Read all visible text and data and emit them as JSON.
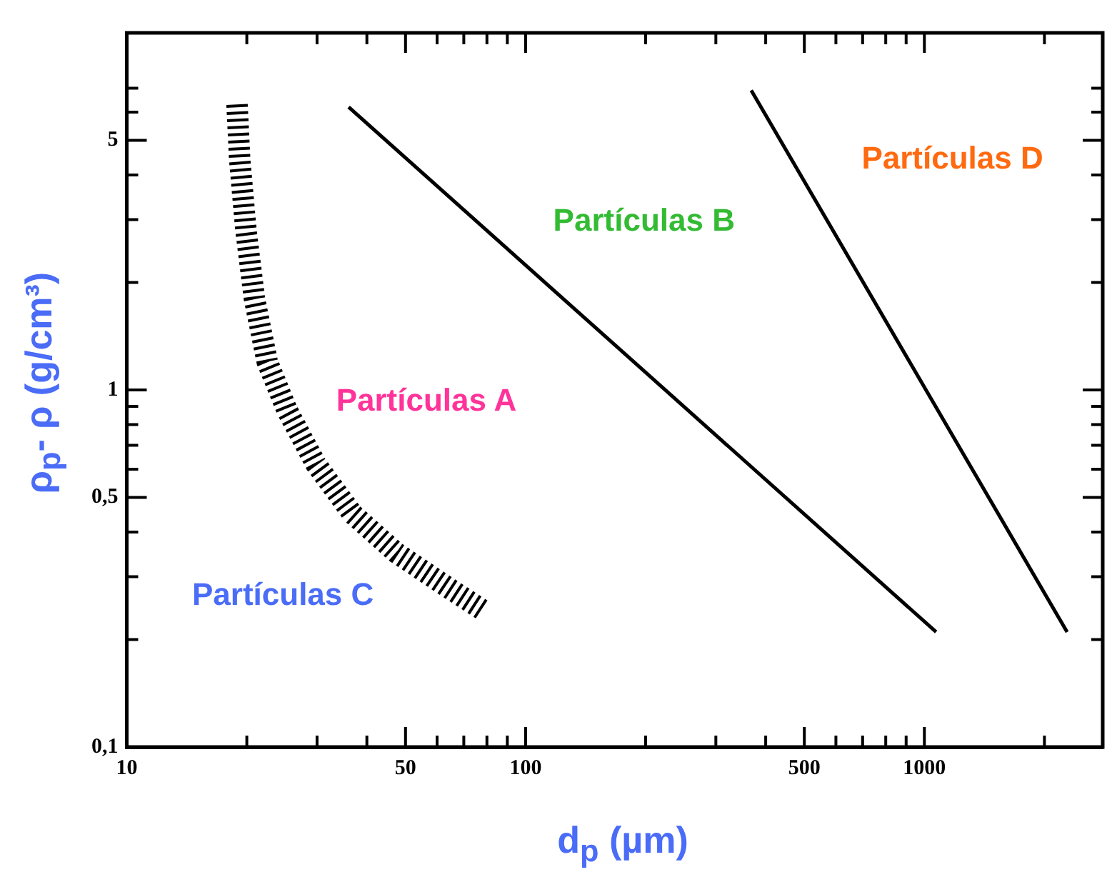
{
  "chart_data": {
    "type": "line",
    "xlabel": "d$_{p}$ (µm)",
    "ylabel": "ρ$_{p}$- ρ (g/cm³)",
    "log": "xy",
    "grid": false,
    "legend": false,
    "marker": "none",
    "xlim": [
      10,
      2800
    ],
    "ylim": [
      0.1,
      10
    ],
    "xticks": [
      10,
      {
        "value": 20,
        "label": null
      },
      {
        "value": 30,
        "label": null
      },
      {
        "value": 40,
        "label": null
      },
      50,
      {
        "value": 60,
        "label": null
      },
      {
        "value": 70,
        "label": null
      },
      {
        "value": 80,
        "label": null
      },
      {
        "value": 90,
        "label": null
      },
      100,
      {
        "value": 200,
        "label": null
      },
      {
        "value": 300,
        "label": null
      },
      {
        "value": 400,
        "label": null
      },
      500,
      {
        "value": 600,
        "label": null
      },
      {
        "value": 700,
        "label": null
      },
      {
        "value": 800,
        "label": null
      },
      {
        "value": 900,
        "label": null
      },
      1000,
      {
        "value": 2000,
        "label": null
      }
    ],
    "yticks": [
      {
        "value": 0.1,
        "label": "0,1"
      },
      {
        "value": 0.2,
        "label": null
      },
      {
        "value": 0.3,
        "label": null
      },
      {
        "value": 0.4,
        "label": null
      },
      {
        "value": 0.5,
        "label": "0,5"
      },
      {
        "value": 0.6,
        "label": null
      },
      {
        "value": 0.7,
        "label": null
      },
      {
        "value": 0.8,
        "label": null
      },
      {
        "value": 0.9,
        "label": null
      },
      1,
      {
        "value": 2,
        "label": null
      },
      {
        "value": 3,
        "label": null
      },
      {
        "value": 4,
        "label": null
      },
      5,
      {
        "value": 6,
        "label": null
      },
      {
        "value": 7,
        "label": null
      }
    ],
    "series": [
      {
        "color": "#000000",
        "line_style": "dashed",
        "x": [
          18.9,
          19.2,
          19.9,
          20.9,
          22.5,
          25.2,
          29.8,
          36.8,
          47.4,
          63.8,
          78.9
        ],
        "values": [
          6.3,
          4.4,
          2.8,
          1.8,
          1.2,
          0.88,
          0.62,
          0.45,
          0.35,
          0.28,
          0.24
        ]
      },
      {
        "color": "#000000",
        "line_style": "solid",
        "x": [
          36,
          1070
        ],
        "values": [
          6.2,
          0.21
        ]
      },
      {
        "color": "#000000",
        "line_style": "solid",
        "x": [
          368,
          2280
        ],
        "values": [
          6.9,
          0.21
        ]
      }
    ],
    "annotations": [
      "Partículas A",
      "Partículas B",
      "Partículas D",
      "Partículas C"
    ]
  }
}
